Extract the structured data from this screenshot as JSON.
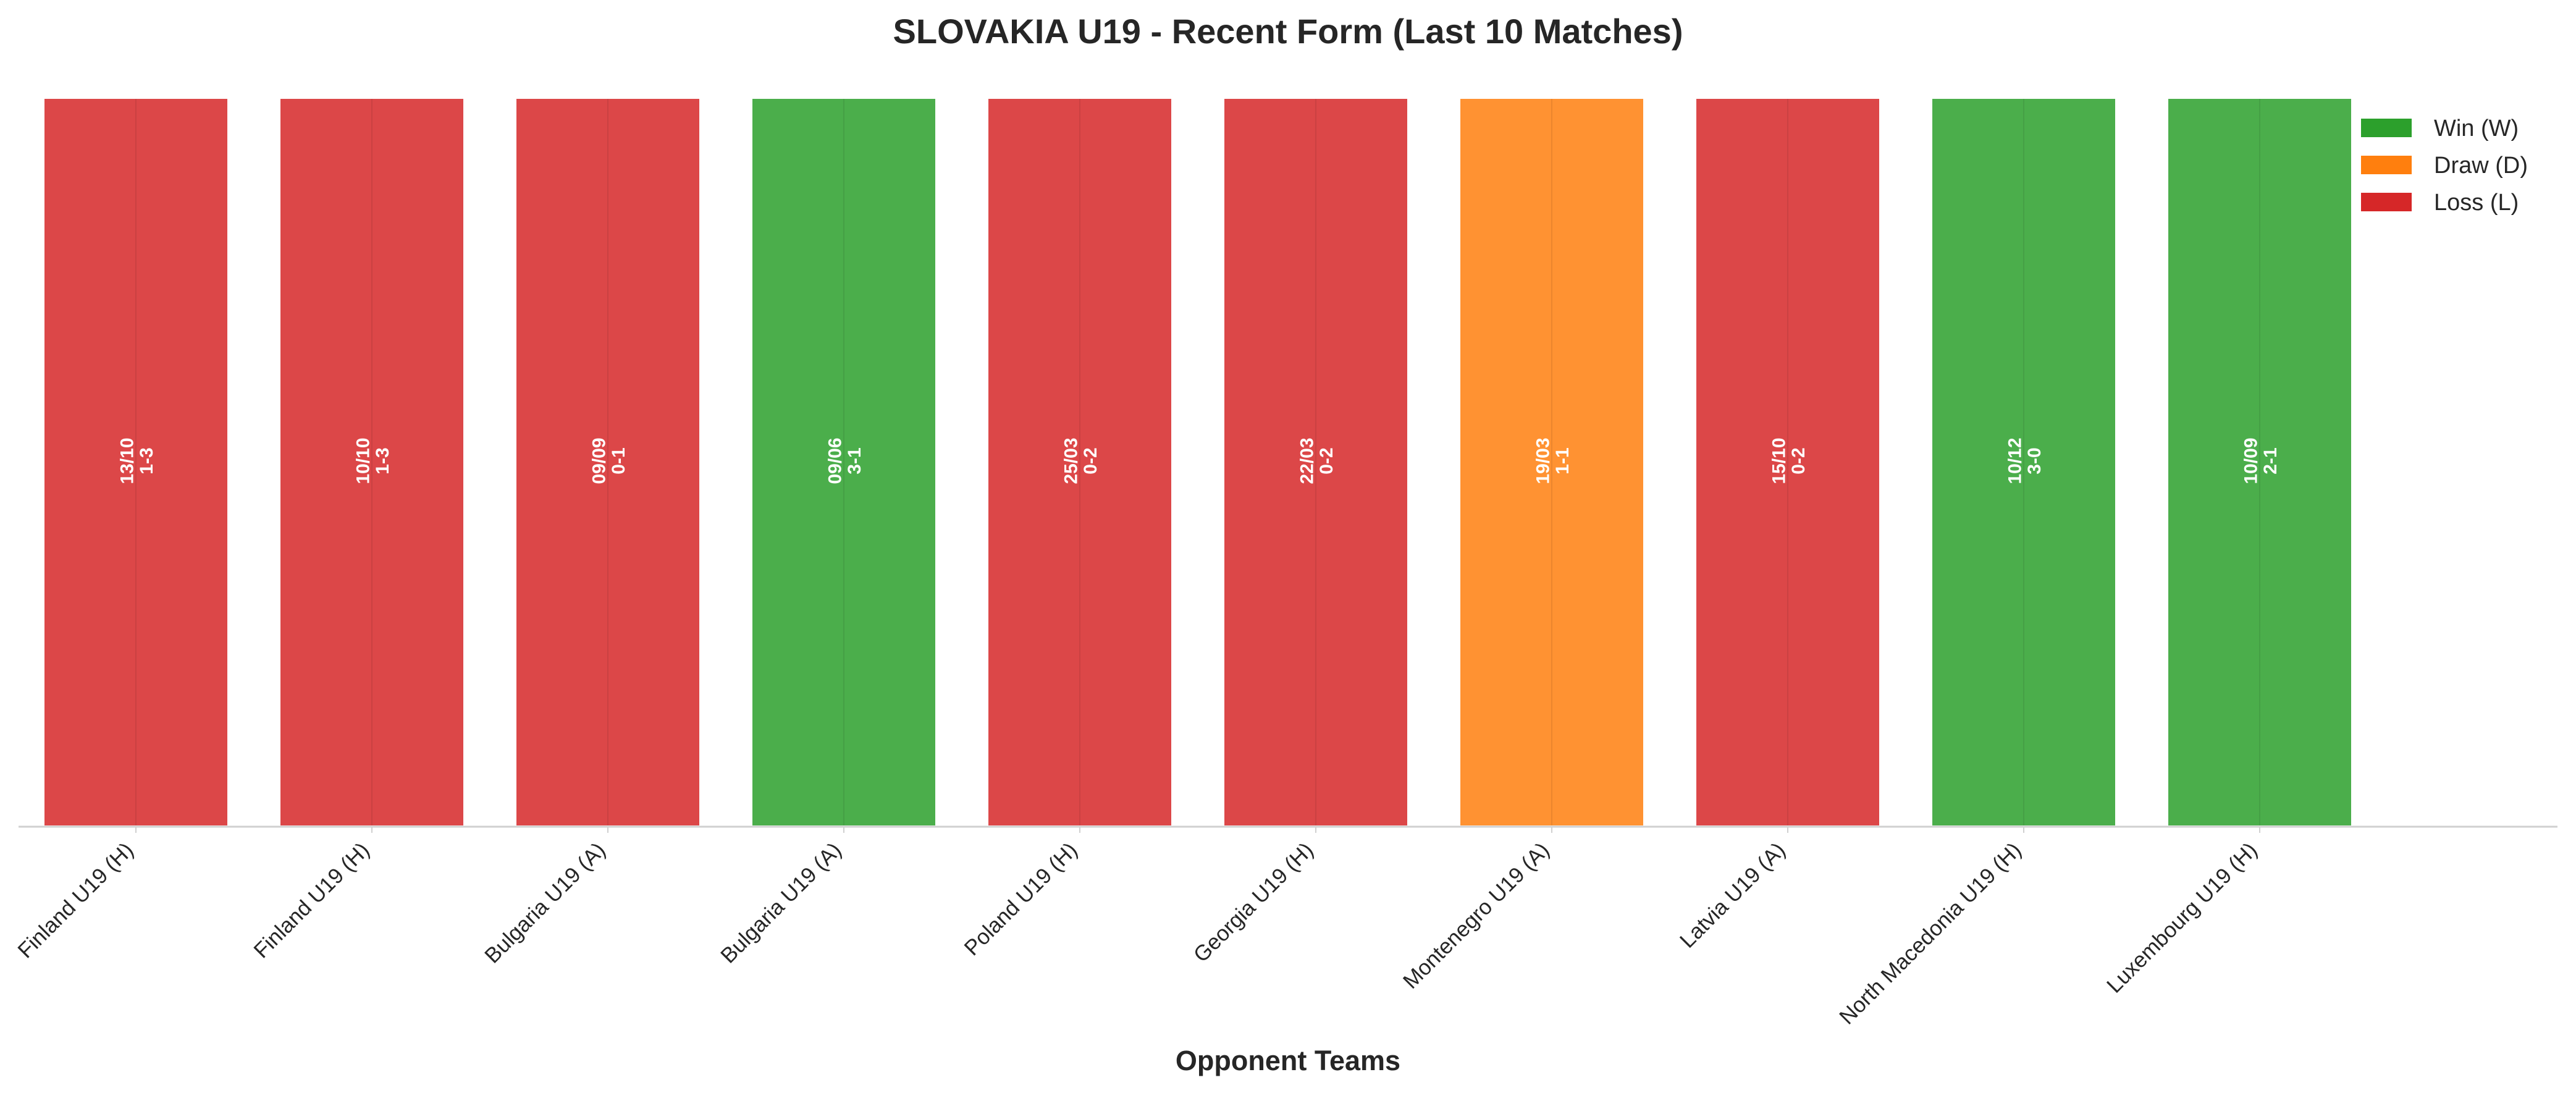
{
  "chart_data": {
    "type": "bar",
    "title": "SLOVAKIA U19 - Recent Form (Last 10 Matches)",
    "xlabel": "Opponent Teams",
    "ylabel": "",
    "ylim": [
      0,
      1
    ],
    "grid": false,
    "legend_position": "top-right",
    "categories": [
      "Finland U19 (H)",
      "Finland U19 (H)",
      "Bulgaria U19 (A)",
      "Bulgaria U19 (A)",
      "Poland U19 (H)",
      "Georgia U19 (H)",
      "Montenegro U19 (A)",
      "Latvia U19 (A)",
      "North Macedonia U19 (H)",
      "Luxembourg U19 (H)"
    ],
    "values": [
      1,
      1,
      1,
      1,
      1,
      1,
      1,
      1,
      1,
      1
    ],
    "results": [
      "L",
      "L",
      "L",
      "W",
      "L",
      "L",
      "D",
      "L",
      "W",
      "W"
    ],
    "bar_labels": [
      {
        "date": "13/10",
        "score": "1-3"
      },
      {
        "date": "10/10",
        "score": "1-3"
      },
      {
        "date": "09/09",
        "score": "0-1"
      },
      {
        "date": "09/06",
        "score": "3-1"
      },
      {
        "date": "25/03",
        "score": "0-2"
      },
      {
        "date": "22/03",
        "score": "0-2"
      },
      {
        "date": "19/03",
        "score": "1-1"
      },
      {
        "date": "15/10",
        "score": "0-2"
      },
      {
        "date": "10/12",
        "score": "3-0"
      },
      {
        "date": "10/09",
        "score": "2-1"
      }
    ],
    "legend": [
      {
        "key": "W",
        "label": "Win (W)"
      },
      {
        "key": "D",
        "label": "Draw (D)"
      },
      {
        "key": "L",
        "label": "Loss (L)"
      }
    ],
    "colors": {
      "W": "#2ca02c",
      "D": "#ff7f0e",
      "L": "#d62728",
      "text": "#262626",
      "axis": "#d0d0d0"
    }
  }
}
